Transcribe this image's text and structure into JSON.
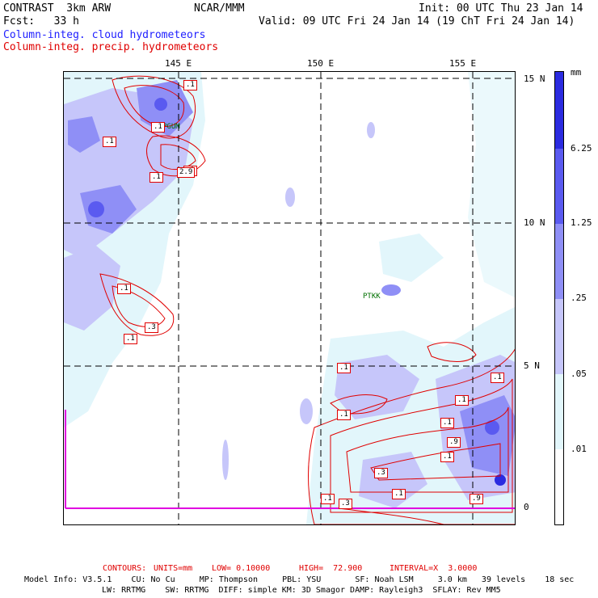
{
  "header": {
    "model": "CONTRAST  3km ARW",
    "org": "NCAR/MMM",
    "init": "Init: 00 UTC Thu 23 Jan 14",
    "fcst": "Fcst:   33 h",
    "valid": "Valid: 09 UTC Fri 24 Jan 14 (19 ChT Fri 24 Jan 14)",
    "field_blue": "Column-integ. cloud hydrometeors",
    "field_red": "Column-integ. precip. hydrometeors"
  },
  "axes": {
    "lon_labels": [
      "145 E",
      "150 E",
      "155 E"
    ],
    "lat_labels": [
      "15 N",
      "10 N",
      "5 N",
      "0"
    ]
  },
  "stations": [
    "PGUM",
    "PTKK"
  ],
  "contour_labels": [
    ".1",
    ".1",
    ".1",
    ".1",
    "2.9",
    ".1",
    ".3",
    ".1",
    ".1",
    ".1",
    ".1",
    ".1",
    ".1",
    ".1",
    ".9",
    ".3",
    ".1",
    ".1",
    ".3",
    ".9",
    ".1"
  ],
  "colorbar": {
    "unit": "mm",
    "labels": [
      "6.25",
      "1.25",
      ".25",
      ".05",
      ".01"
    ],
    "colors": [
      "#2b2be0",
      "#5a5af0",
      "#8f8ff6",
      "#c6c6fa",
      "#e2f6fb",
      "#ffffff"
    ]
  },
  "footer": {
    "contours_label": "CONTOURS:",
    "units": "UNITS=mm",
    "low": "LOW= 0.10000",
    "high": "HIGH=  72.900",
    "interval": "INTERVAL=X  3.0000",
    "model_info": "Model Info: V3.5.1    CU: No Cu     MP: Thompson     PBL: YSU       SF: Noah LSM     3.0 km   39 levels    18 sec",
    "model_info2": "LW: RRTMG    SW: RRTMG  DIFF: simple KM: 3D Smagor DAMP: Rayleigh3  SFLAY: Rev MM5"
  }
}
